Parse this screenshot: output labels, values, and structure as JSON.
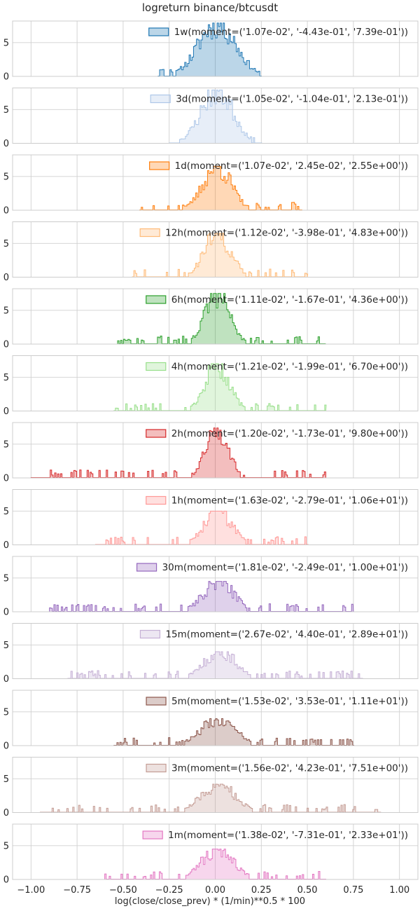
{
  "figure": {
    "title": "logreturn binance/btcusdt",
    "xlabel": "log(close/close_prev) * (1/min)**0.5 * 100"
  },
  "chart_data": {
    "type": "histogram",
    "title": "logreturn binance/btcusdt",
    "xlabel": "log(close/close_prev) * (1/min)**0.5 * 100",
    "xlim": [
      -1.1,
      1.1
    ],
    "xticks": [
      -1.0,
      -0.75,
      -0.5,
      -0.25,
      0.0,
      0.25,
      0.5,
      0.75,
      1.0
    ],
    "xtick_labels": [
      "−1.00",
      "−0.75",
      "−0.50",
      "−0.25",
      "0.00",
      "0.25",
      "0.50",
      "0.75",
      "1.00"
    ],
    "ylim": [
      0,
      8.2
    ],
    "yticks": [
      0,
      5
    ],
    "grid": true,
    "legend_position": "top-right",
    "histtype": "stepfilled",
    "panels": [
      {
        "label": "1w(moment=('1.07e-02', '-4.43e-01', '7.39e-01'))",
        "color": "#1f77b4",
        "mean": 0.0107,
        "std": 0.1,
        "peak": 7.9,
        "range": [
          -0.31,
          0.25
        ],
        "step": 0.008,
        "seed": 11,
        "fill": 0.3
      },
      {
        "label": "3d(moment=('1.05e-02', '-1.04e-01', '2.13e-01'))",
        "color": "#aec7e8",
        "mean": 0.0105,
        "std": 0.085,
        "peak": 7.9,
        "range": [
          -0.25,
          0.25
        ],
        "step": 0.008,
        "seed": 23,
        "fill": 0.3
      },
      {
        "label": "1d(moment=('1.07e-02', '2.45e-02', '2.55e+00'))",
        "color": "#ff7f0e",
        "mean": 0.0107,
        "std": 0.075,
        "peak": 6.5,
        "range": [
          -0.41,
          0.47
        ],
        "step": 0.008,
        "seed": 37,
        "fill": 0.3
      },
      {
        "label": "12h(moment=('1.12e-02', '-3.98e-01', '4.83e+00'))",
        "color": "#ffbb78",
        "mean": 0.0112,
        "std": 0.07,
        "peak": 6.5,
        "range": [
          -0.45,
          0.5
        ],
        "step": 0.008,
        "seed": 41,
        "fill": 0.3
      },
      {
        "label": "6h(moment=('1.11e-02', '-1.67e-01', '4.36e+00'))",
        "color": "#2ca02c",
        "mean": 0.0111,
        "std": 0.065,
        "peak": 7.5,
        "range": [
          -0.53,
          0.6
        ],
        "step": 0.008,
        "seed": 53,
        "fill": 0.3
      },
      {
        "label": "4h(moment=('1.21e-02', '-1.99e-01', '6.70e+00'))",
        "color": "#98df8a",
        "mean": 0.0121,
        "std": 0.065,
        "peak": 7.0,
        "range": [
          -0.55,
          0.6
        ],
        "step": 0.008,
        "seed": 67,
        "fill": 0.3
      },
      {
        "label": "2h(moment=('1.20e-02', '-1.73e-01', '9.80e+00'))",
        "color": "#d62728",
        "mean": 0.012,
        "std": 0.06,
        "peak": 7.4,
        "range": [
          -1.0,
          0.6
        ],
        "step": 0.008,
        "seed": 71,
        "fill": 0.3
      },
      {
        "label": "1h(moment=('1.63e-02', '-2.79e-01', '1.06e+01'))",
        "color": "#ff9896",
        "mean": 0.0163,
        "std": 0.075,
        "peak": 5.0,
        "range": [
          -0.65,
          0.5
        ],
        "step": 0.008,
        "seed": 83,
        "fill": 0.3
      },
      {
        "label": "30m(moment=('1.81e-02', '-2.49e-01', '1.00e+01'))",
        "color": "#9467bd",
        "mean": 0.0181,
        "std": 0.08,
        "peak": 4.5,
        "range": [
          -0.9,
          0.75
        ],
        "step": 0.008,
        "seed": 97,
        "fill": 0.3
      },
      {
        "label": "15m(moment=('2.67e-02', '4.40e-01', '2.89e+01'))",
        "color": "#c5b0d5",
        "mean": 0.0267,
        "std": 0.085,
        "peak": 4.0,
        "range": [
          -0.8,
          0.8
        ],
        "step": 0.008,
        "seed": 101,
        "fill": 0.3
      },
      {
        "label": "5m(moment=('1.53e-02', '3.53e-01', '1.11e+01'))",
        "color": "#8c564b",
        "mean": 0.0153,
        "std": 0.09,
        "peak": 4.0,
        "range": [
          -0.55,
          0.75
        ],
        "step": 0.008,
        "seed": 113,
        "fill": 0.3
      },
      {
        "label": "3m(moment=('1.56e-02', '4.23e-01', '7.51e+00'))",
        "color": "#c49c94",
        "mean": 0.0156,
        "std": 0.09,
        "peak": 4.2,
        "range": [
          -0.95,
          0.9
        ],
        "step": 0.008,
        "seed": 127,
        "fill": 0.3
      },
      {
        "label": "1m(moment=('1.38e-02', '-7.31e-01', '2.33e+01'))",
        "color": "#e377c2",
        "mean": 0.0138,
        "std": 0.085,
        "peak": 4.5,
        "range": [
          -0.6,
          0.6
        ],
        "step": 0.008,
        "seed": 131,
        "fill": 0.3
      }
    ]
  }
}
